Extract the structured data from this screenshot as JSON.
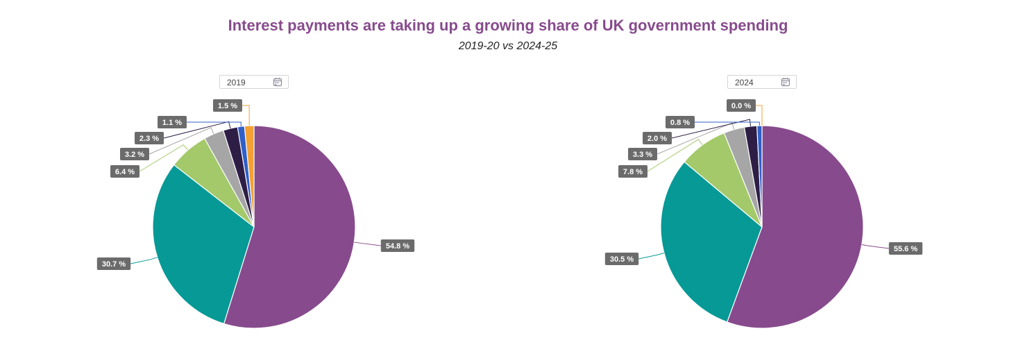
{
  "title": "Interest payments are taking up a growing share of UK government spending",
  "subtitle": "2019-20 vs 2024-25",
  "selectors": [
    {
      "value": "2019",
      "icon": "calendar-icon"
    },
    {
      "value": "2024",
      "icon": "calendar-icon"
    }
  ],
  "colors": {
    "label_bg": "#6b6b6b",
    "label_text": "#ffffff",
    "title": "#874B8D"
  },
  "chart_data": [
    {
      "type": "pie",
      "year": "2019",
      "slices": [
        {
          "value": 54.8,
          "label": "54.8 %",
          "color": "#874B8D"
        },
        {
          "value": 30.7,
          "label": "30.7 %",
          "color": "#079996"
        },
        {
          "value": 6.4,
          "label": "6.4 %",
          "color": "#A3C96A"
        },
        {
          "value": 3.2,
          "label": "3.2 %",
          "color": "#A6A6A6"
        },
        {
          "value": 2.3,
          "label": "2.3 %",
          "color": "#2E1E46"
        },
        {
          "value": 1.1,
          "label": "1.1 %",
          "color": "#2F5FC8"
        },
        {
          "value": 1.5,
          "label": "1.5 %",
          "color": "#F5A033"
        }
      ]
    },
    {
      "type": "pie",
      "year": "2024",
      "slices": [
        {
          "value": 55.6,
          "label": "55.6 %",
          "color": "#874B8D"
        },
        {
          "value": 30.5,
          "label": "30.5 %",
          "color": "#079996"
        },
        {
          "value": 7.8,
          "label": "7.8 %",
          "color": "#A3C96A"
        },
        {
          "value": 3.3,
          "label": "3.3 %",
          "color": "#A6A6A6"
        },
        {
          "value": 2.0,
          "label": "2.0 %",
          "color": "#2E1E46"
        },
        {
          "value": 0.8,
          "label": "0.8 %",
          "color": "#2F5FC8"
        },
        {
          "value": 0.0,
          "label": "0.0 %",
          "color": "#F5A033"
        }
      ]
    }
  ]
}
